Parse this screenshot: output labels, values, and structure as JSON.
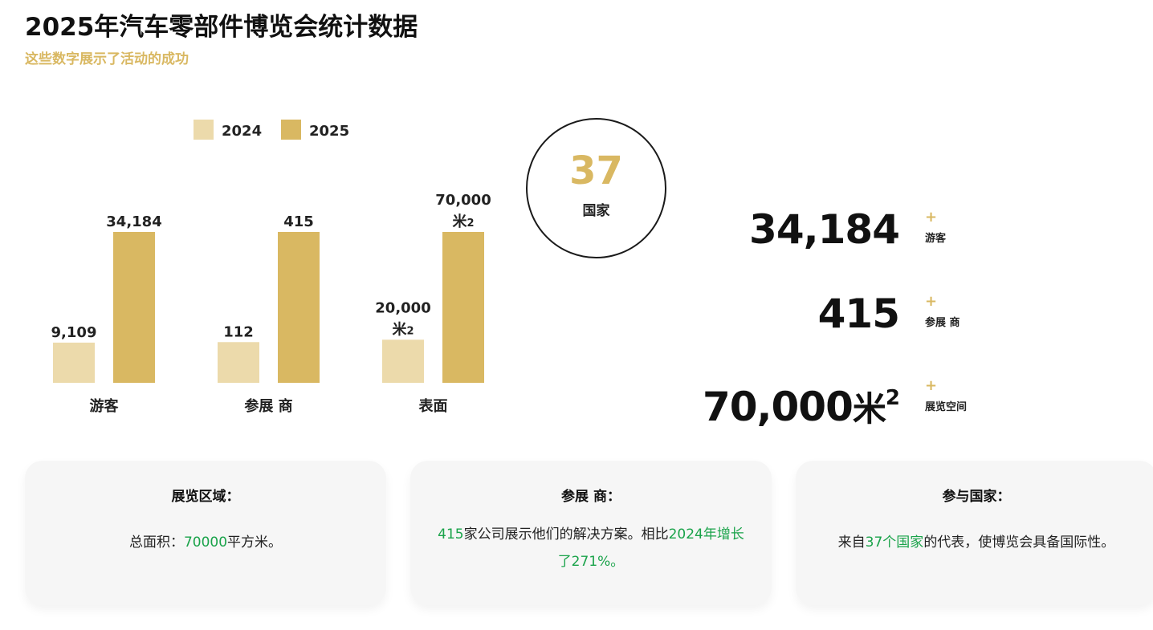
{
  "header": {
    "title": "2025年汽车零部件博览会统计数据",
    "subtitle": "这些数字展示了活动的成功"
  },
  "colors": {
    "accent": "#d9b862",
    "light": "#ecdaab",
    "highlight": "#1aa34a"
  },
  "chart_data": {
    "type": "bar",
    "categories": [
      "游客",
      "参展 商",
      "表面"
    ],
    "series": [
      {
        "name": "2024",
        "values": [
          9109,
          112,
          20000
        ],
        "labels": [
          "9,109",
          "112",
          "20,000 米2"
        ]
      },
      {
        "name": "2025",
        "values": [
          34184,
          415,
          70000
        ],
        "labels": [
          "34,184",
          "415",
          "70,000 米2"
        ]
      }
    ],
    "legend": "top",
    "grid": false
  },
  "circle": {
    "value": "37",
    "label": "国家"
  },
  "stats": [
    {
      "value": "34,184",
      "unit": "",
      "sup": "",
      "plus": "+",
      "label": "游客"
    },
    {
      "value": "415",
      "unit": "",
      "sup": "",
      "plus": "+",
      "label": "参展 商"
    },
    {
      "value": "70,000",
      "unit": "米",
      "sup": "2",
      "plus": "+",
      "label": "展览空间"
    }
  ],
  "cards": [
    {
      "title": "展览区域：",
      "body": [
        {
          "text": "总面积：",
          "hl": false
        },
        {
          "text": "70000",
          "hl": true
        },
        {
          "text": "平方米。",
          "hl": false
        }
      ]
    },
    {
      "title": "参展 商：",
      "body": [
        {
          "text": "415",
          "hl": true
        },
        {
          "text": "家公司展示他们的解决方案。相比",
          "hl": false
        },
        {
          "text": "2024年增长了271%。",
          "hl": true
        }
      ]
    },
    {
      "title": "参与国家：",
      "body": [
        {
          "text": "来自",
          "hl": false
        },
        {
          "text": "37个国家",
          "hl": true
        },
        {
          "text": "的代表，使博览会具备国际性。",
          "hl": false
        }
      ]
    }
  ]
}
